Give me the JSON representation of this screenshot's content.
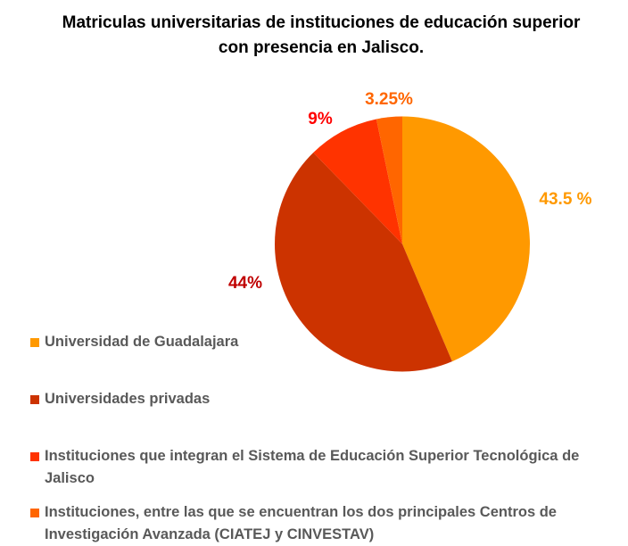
{
  "chart_data": {
    "type": "pie",
    "title": "Matriculas universitarias de instituciones de educación superior con presencia en Jalisco.",
    "start_angle": "top, clockwise",
    "legend_position": "bottom-left",
    "slices": [
      {
        "name": "Universidad de Guadalajara",
        "value": 43.5,
        "label": "43.5 %",
        "color": "#FF9900",
        "label_color": "#FF9900"
      },
      {
        "name": "Universidades privadas",
        "value": 44,
        "label": "44%",
        "color": "#CC3300",
        "label_color": "#C00000"
      },
      {
        "name": "Instituciones que integran el Sistema de Educación Superior Tecnológica de Jalisco",
        "value": 9,
        "label": "9%",
        "color": "#FF3300",
        "label_color": "#FF0000"
      },
      {
        "name": "Instituciones, entre las que se encuentran los dos principales Centros de Investigación Avanzada (CIATEJ y CINVESTAV)",
        "value": 3.25,
        "label": "3.25%",
        "color": "#FF6600",
        "label_color": "#FF6600"
      }
    ]
  }
}
